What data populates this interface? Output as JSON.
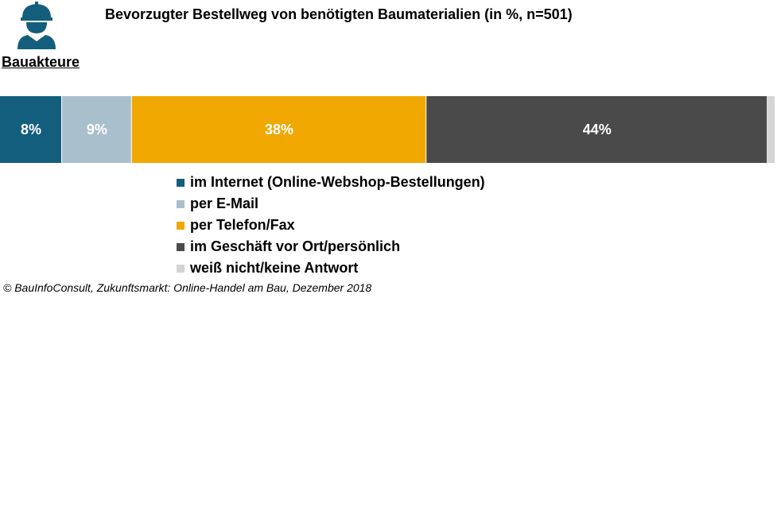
{
  "header": {
    "title": "Bevorzugter Bestellweg  von benötigten Baumaterialien  (in %,  n=501)",
    "audience_label": "Bauakteure",
    "icon": "construction-worker-icon"
  },
  "chart_data": {
    "type": "bar",
    "orientation": "horizontal-stacked-100",
    "title": "Bevorzugter Bestellweg  von benötigten Baumaterialien  (in %,  n=501)",
    "categories": [
      "Bauakteure"
    ],
    "series": [
      {
        "name": "im Internet (Online-Webshop-Bestellungen)",
        "values": [
          8
        ],
        "label": "8%",
        "color": "#135E7D",
        "label_color": "#ffffff"
      },
      {
        "name": "per E-Mail",
        "values": [
          9
        ],
        "label": "9%",
        "color": "#A9BFCC",
        "label_color": "#ffffff"
      },
      {
        "name": "per Telefon/Fax",
        "values": [
          38
        ],
        "label": "38%",
        "color": "#F0A800",
        "label_color": "#ffffff"
      },
      {
        "name": "im Geschäft vor Ort/persönlich",
        "values": [
          44
        ],
        "label": "44%",
        "color": "#4A4A4A",
        "label_color": "#ffffff"
      },
      {
        "name": "weiß nicht/keine Antwort",
        "values": [
          1
        ],
        "label": "",
        "color": "#D4D4D4",
        "label_color": "#ffffff"
      }
    ],
    "xlim": [
      0,
      100
    ],
    "legend_position": "bottom",
    "grid": false
  },
  "footer": {
    "source": "© BauInfoConsult, Zukunftsmarkt: Online-Handel am Bau, Dezember 2018"
  }
}
